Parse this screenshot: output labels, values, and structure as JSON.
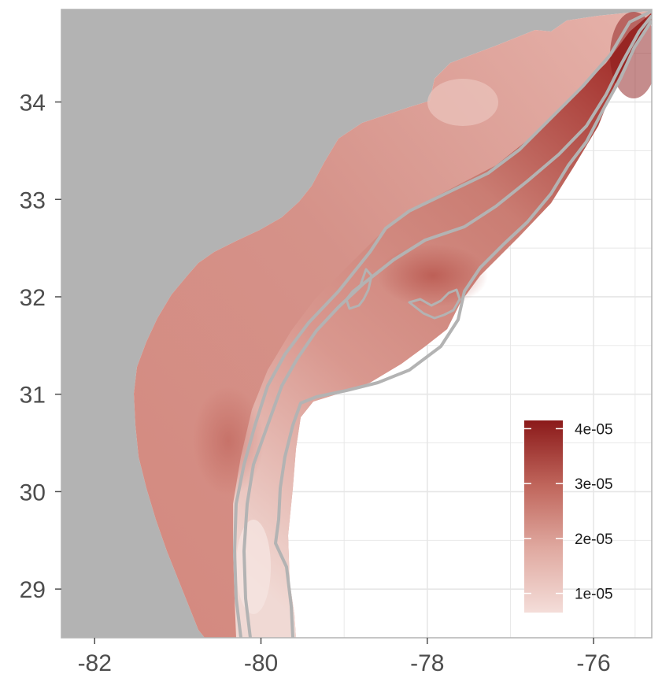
{
  "map": {
    "axes": {
      "x": {
        "ticks": [
          "-82",
          "-80",
          "-78",
          "-76"
        ],
        "values": [
          -82,
          -80,
          -78,
          -76
        ],
        "range": [
          -82.4,
          -75.3
        ]
      },
      "y": {
        "ticks": [
          "29",
          "30",
          "31",
          "32",
          "33",
          "34"
        ],
        "values": [
          29,
          30,
          31,
          32,
          33,
          34
        ],
        "range": [
          28.5,
          34.95
        ]
      },
      "grid": true
    },
    "colors": {
      "land": "#b3b3b3",
      "ocean": "#ffffff",
      "contour": "#b3b3b3",
      "grid": "#e6e6e6",
      "scale_low": "#f4ddd9",
      "scale_high": "#8b1a1a"
    },
    "legend": {
      "position": "bottom-right",
      "labels": [
        "4e-05",
        "3e-05",
        "2e-05",
        "1e-05"
      ],
      "values": [
        4e-05,
        3e-05,
        2e-05,
        1e-05
      ]
    }
  }
}
